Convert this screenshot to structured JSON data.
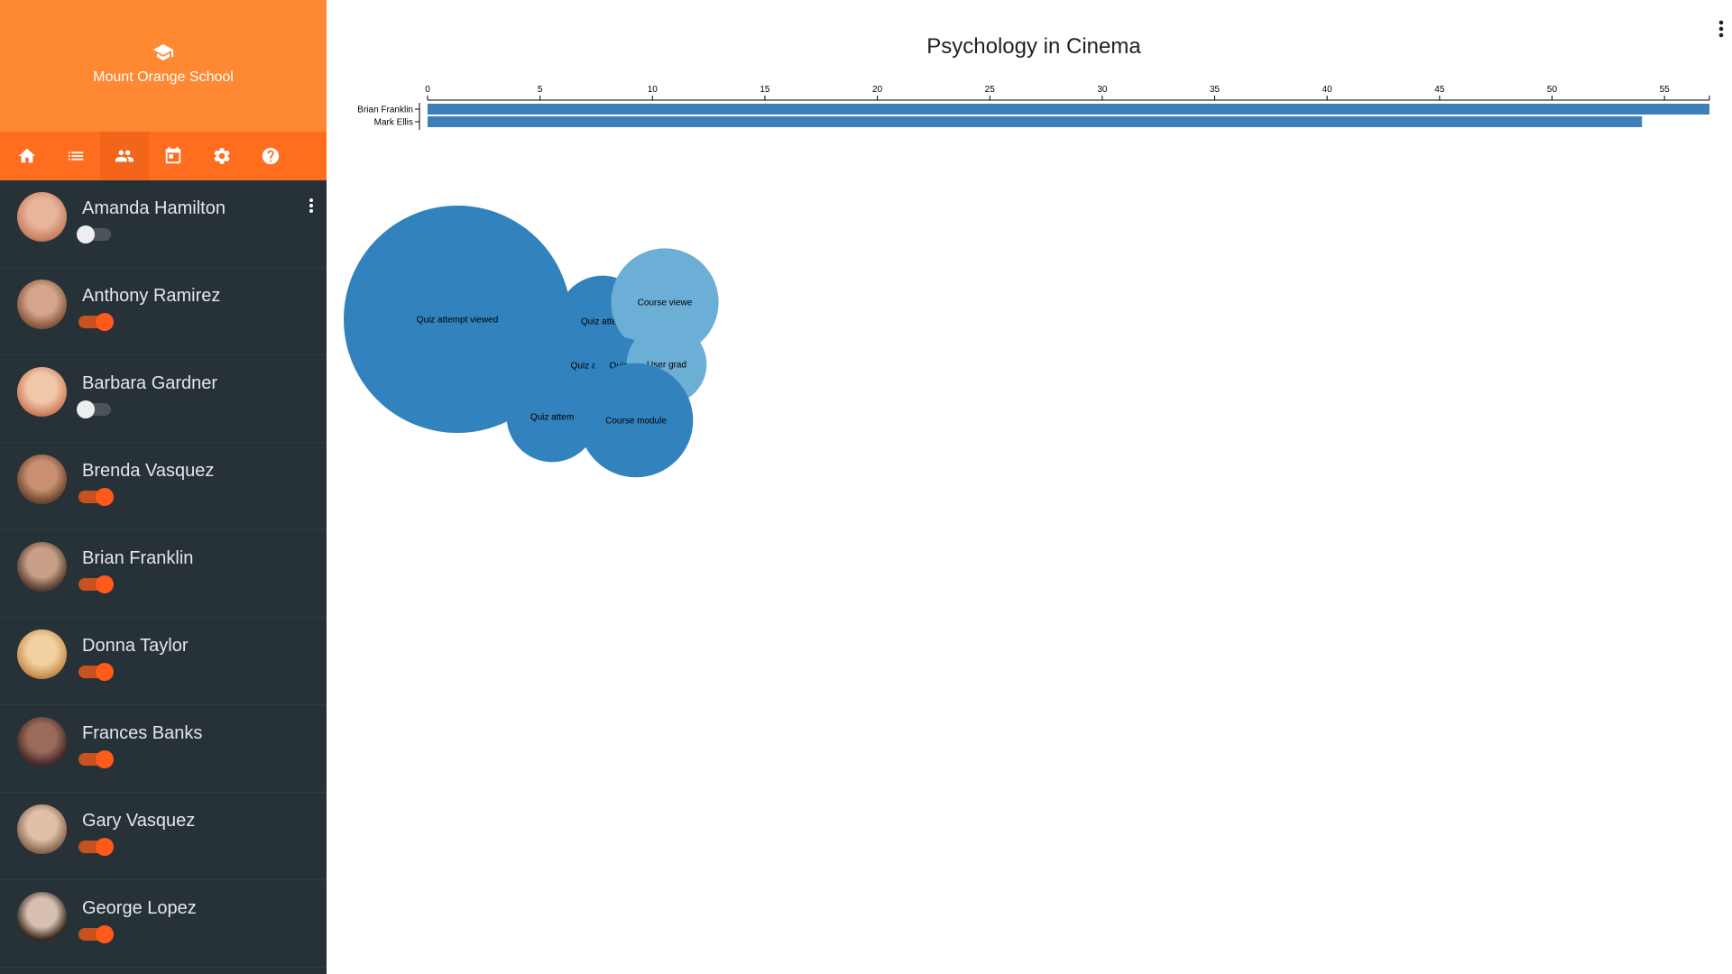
{
  "brand": {
    "school_name": "Mount Orange School",
    "logo_icon": "graduation-cap-icon"
  },
  "nav": [
    {
      "icon": "home-icon"
    },
    {
      "icon": "list-icon"
    },
    {
      "icon": "people-icon",
      "active": true
    },
    {
      "icon": "calendar-icon"
    },
    {
      "icon": "gear-icon"
    },
    {
      "icon": "help-icon"
    }
  ],
  "users": [
    {
      "name": "Amanda Hamilton",
      "enabled": false,
      "has_menu": true
    },
    {
      "name": "Anthony Ramirez",
      "enabled": true
    },
    {
      "name": "Barbara Gardner",
      "enabled": false
    },
    {
      "name": "Brenda Vasquez",
      "enabled": true
    },
    {
      "name": "Brian Franklin",
      "enabled": true
    },
    {
      "name": "Donna Taylor",
      "enabled": true
    },
    {
      "name": "Frances Banks",
      "enabled": true
    },
    {
      "name": "Gary Vasquez",
      "enabled": true
    },
    {
      "name": "George Lopez",
      "enabled": true
    }
  ],
  "colors": {
    "brand": "#ff8833",
    "nav": "#ff6d1f",
    "sidebar": "#263238",
    "toggle_on": "#ff5a1a",
    "bar": "#3d7fb8",
    "bubble_dark": "#3182bd",
    "bubble_light": "#6baed6"
  },
  "main": {
    "title": "Psychology in Cinema",
    "menu_icon": "kebab-menu-icon"
  },
  "chart_data": [
    {
      "type": "bar",
      "orientation": "horizontal",
      "categories": [
        "Brian Franklin",
        "Mark Ellis"
      ],
      "values": [
        57,
        54
      ],
      "xlim": [
        0,
        57
      ],
      "xticks": [
        0,
        5,
        10,
        15,
        20,
        25,
        30,
        35,
        40,
        45,
        50,
        55
      ],
      "axis_position": "top"
    },
    {
      "type": "bubble",
      "nodes": [
        {
          "label": "Quiz attempt viewed",
          "value": 42,
          "shade": "dark"
        },
        {
          "label": "Quiz attem",
          "value": 6.7,
          "shade": "dark"
        },
        {
          "label": "Course viewe",
          "value": 9.4,
          "shade": "light"
        },
        {
          "label": "Quiz a",
          "value": 2.5,
          "shade": "dark"
        },
        {
          "label": "Quiz a",
          "value": 2.5,
          "shade": "dark"
        },
        {
          "label": "User grad",
          "value": 5.2,
          "shade": "light"
        },
        {
          "label": "Quiz attem",
          "value": 6.7,
          "shade": "dark"
        },
        {
          "label": "Course module",
          "value": 10.6,
          "shade": "dark"
        }
      ]
    }
  ]
}
